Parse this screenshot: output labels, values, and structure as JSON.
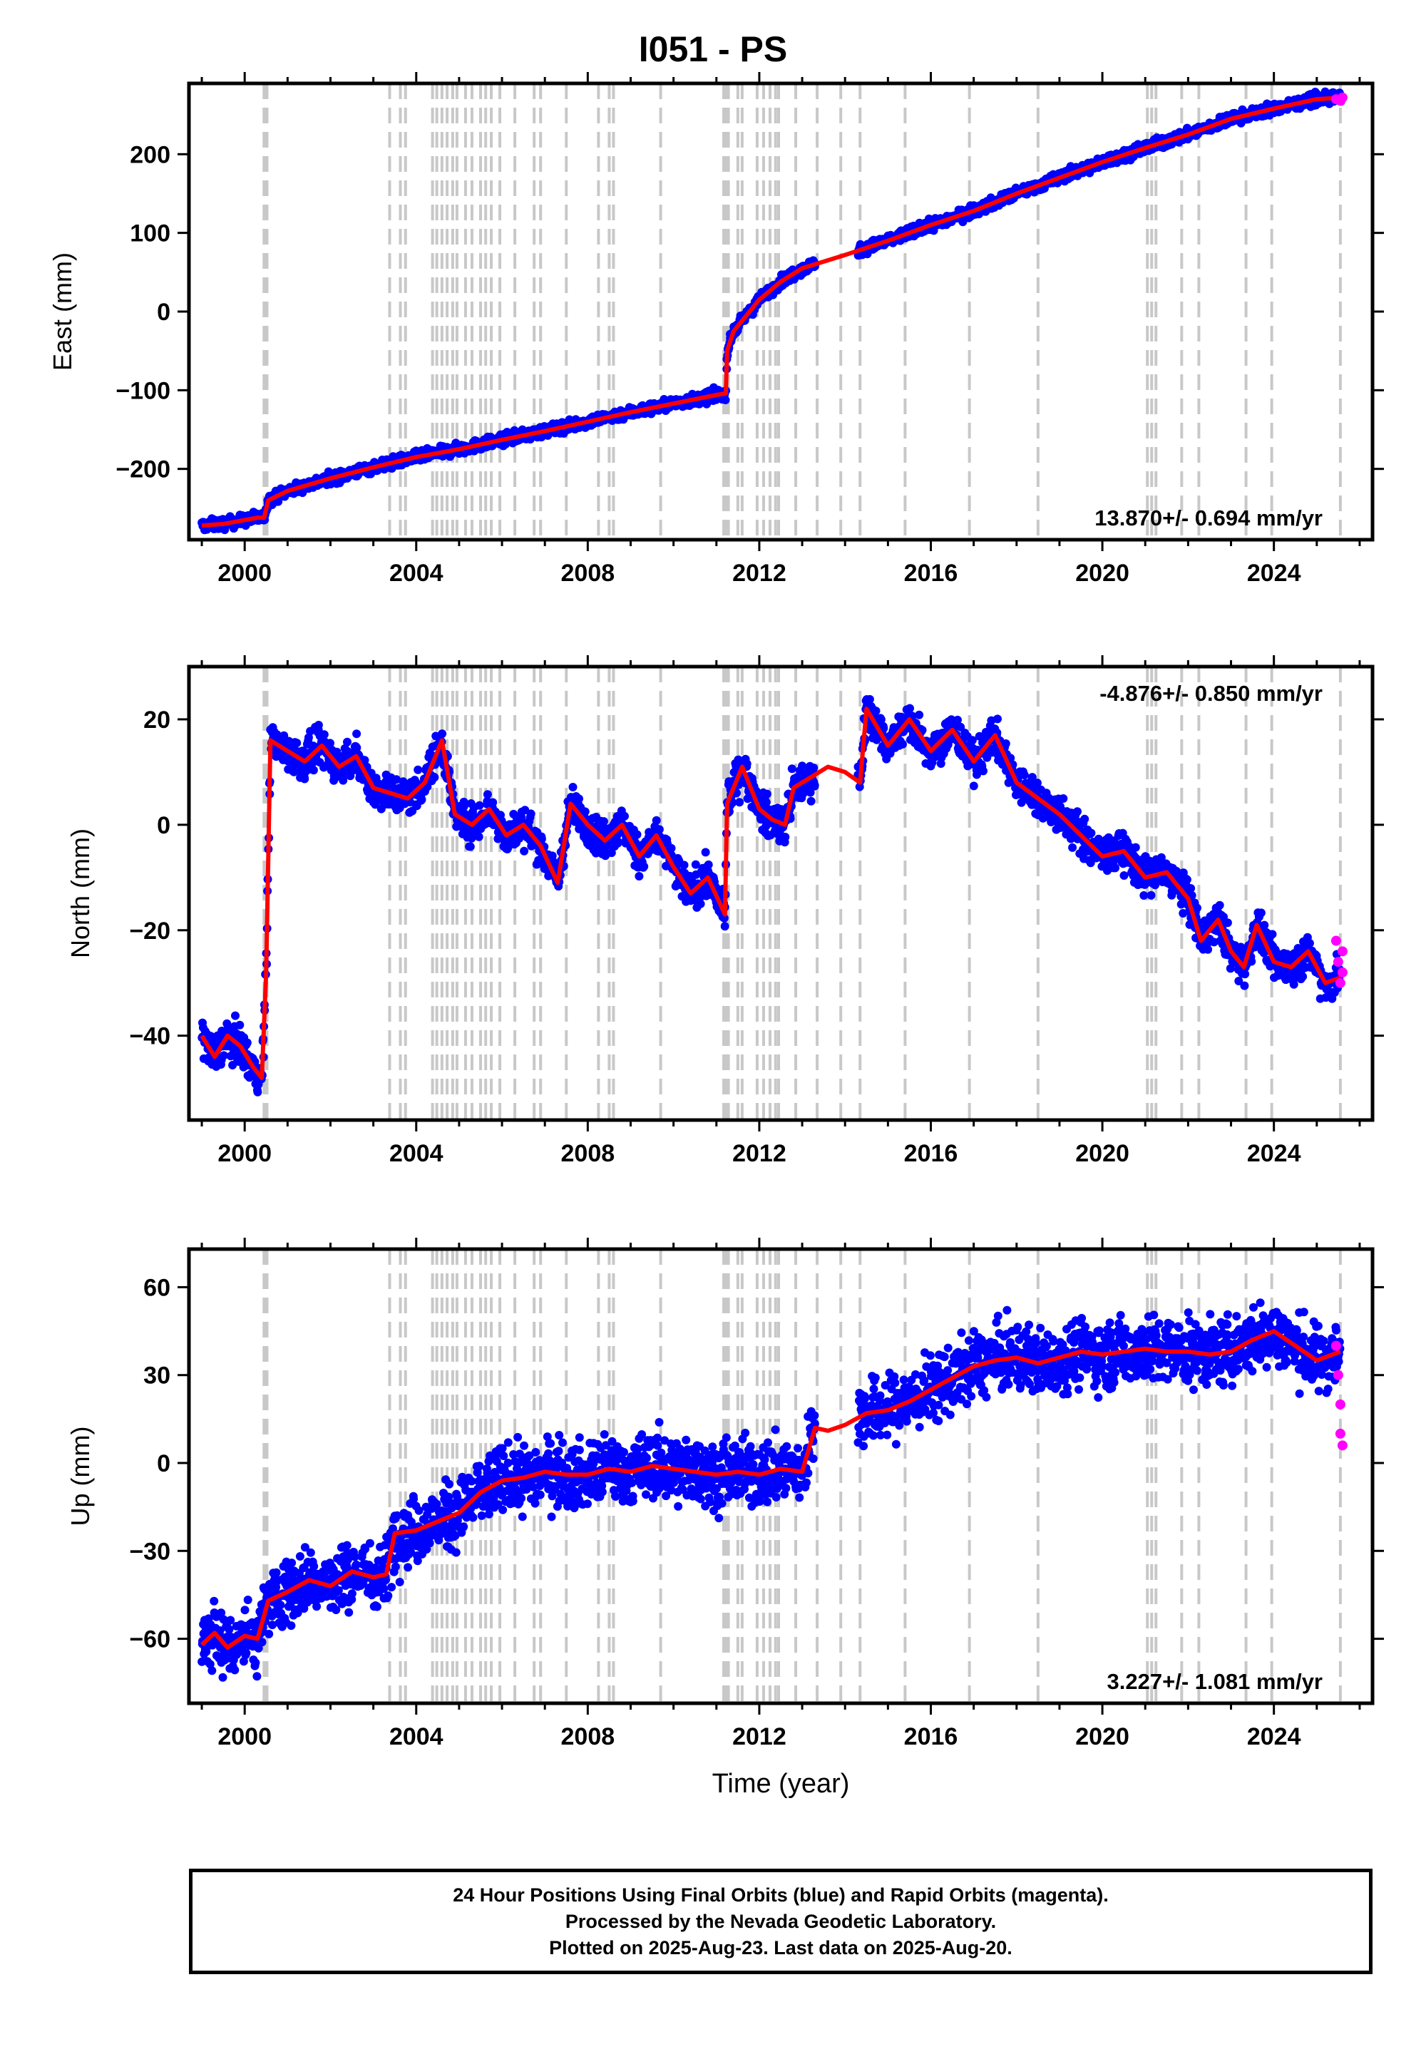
{
  "title": "I051 - PS",
  "footer": {
    "line1": "24 Hour Positions Using Final Orbits (blue) and Rapid Orbits (magenta).",
    "line2": "Processed by the Nevada Geodetic Laboratory.",
    "line3": "Plotted on 2025-Aug-23. Last data on 2025-Aug-20."
  },
  "colors": {
    "final_orbits": "#0000ff",
    "rapid_orbits": "#ff00ff",
    "model": "#ff0000",
    "steps": "#c8c8c8"
  },
  "steps_years": [
    2000.45,
    2000.47,
    2000.5,
    2000.52,
    2003.38,
    2003.63,
    2003.75,
    2004.38,
    2004.48,
    2004.6,
    2004.72,
    2004.85,
    2004.95,
    2005.15,
    2005.3,
    2005.5,
    2005.62,
    2005.75,
    2005.95,
    2006.3,
    2006.75,
    2006.9,
    2007.5,
    2008.25,
    2008.5,
    2008.6,
    2009.7,
    2011.17,
    2011.22,
    2011.28,
    2011.5,
    2011.6,
    2011.95,
    2012.1,
    2012.25,
    2012.38,
    2012.45,
    2012.85,
    2013.35,
    2013.9,
    2014.35,
    2015.4,
    2016.9,
    2018.5,
    2021.05,
    2021.15,
    2021.25,
    2021.85,
    2022.25,
    2023.35,
    2023.95,
    2025.55
  ],
  "chart_data": [
    {
      "type": "scatter",
      "component": "East",
      "ylabel": "East (mm)",
      "xlim": [
        1998.7,
        2026.3
      ],
      "ylim": [
        -290,
        290
      ],
      "xticks": [
        2000,
        2004,
        2008,
        2012,
        2016,
        2020,
        2024
      ],
      "yticks": [
        -200,
        -100,
        0,
        100,
        200
      ],
      "rate_label": "13.870+/- 0.694 mm/yr",
      "rate_position": "bottom-right",
      "model": {
        "x": [
          1999.0,
          1999.5,
          2000.0,
          2000.3,
          2000.45,
          2000.55,
          2001.0,
          2002.0,
          2003.0,
          2004.0,
          2005.0,
          2006.0,
          2007.0,
          2008.0,
          2009.0,
          2010.0,
          2011.0,
          2011.22,
          2011.25,
          2011.4,
          2011.7,
          2012.0,
          2012.5,
          2013.0,
          2014.0,
          2015.0,
          2016.0,
          2017.0,
          2018.0,
          2019.0,
          2020.0,
          2021.0,
          2022.0,
          2023.0,
          2024.0,
          2025.0,
          2025.6
        ],
        "y": [
          -272,
          -270,
          -265,
          -262,
          -262,
          -240,
          -228,
          -212,
          -198,
          -185,
          -175,
          -163,
          -152,
          -140,
          -128,
          -117,
          -106,
          -104,
          -50,
          -25,
          -5,
          15,
          38,
          55,
          72,
          90,
          110,
          128,
          150,
          170,
          190,
          208,
          225,
          245,
          258,
          270,
          272
        ]
      },
      "rapid_orbits": {
        "x": [
          2025.45,
          2025.55,
          2025.6
        ],
        "y": [
          270,
          268,
          272
        ]
      }
    },
    {
      "type": "scatter",
      "component": "North",
      "ylabel": "North (mm)",
      "xlim": [
        1998.7,
        2026.3
      ],
      "ylim": [
        -56,
        30
      ],
      "xticks": [
        2000,
        2004,
        2008,
        2012,
        2016,
        2020,
        2024
      ],
      "yticks": [
        -40,
        -20,
        0,
        20
      ],
      "rate_label": "-4.876+/- 0.850 mm/yr",
      "rate_position": "top-right",
      "model": {
        "x": [
          1999.0,
          1999.3,
          1999.6,
          1999.9,
          2000.2,
          2000.4,
          2000.5,
          2000.6,
          2001.0,
          2001.4,
          2001.8,
          2002.2,
          2002.6,
          2003.0,
          2003.4,
          2003.8,
          2004.2,
          2004.6,
          2004.9,
          2005.3,
          2005.7,
          2006.1,
          2006.5,
          2006.9,
          2007.3,
          2007.6,
          2008.0,
          2008.4,
          2008.8,
          2009.2,
          2009.6,
          2010.0,
          2010.4,
          2010.8,
          2011.2,
          2011.25,
          2011.6,
          2012.0,
          2012.3,
          2012.6,
          2012.8,
          2013.2,
          2013.6,
          2014.0,
          2014.35,
          2014.5,
          2015.0,
          2015.5,
          2016.0,
          2016.5,
          2017.0,
          2017.5,
          2018.0,
          2018.5,
          2019.0,
          2019.5,
          2020.0,
          2020.5,
          2021.0,
          2021.5,
          2022.0,
          2022.3,
          2022.7,
          2023.0,
          2023.3,
          2023.6,
          2024.0,
          2024.4,
          2024.8,
          2025.2,
          2025.55
        ],
        "y": [
          -40,
          -44,
          -40,
          -42,
          -46,
          -48,
          -28,
          16,
          14,
          12,
          15,
          11,
          13,
          7,
          6,
          5,
          8,
          16,
          2,
          0,
          3,
          -2,
          0,
          -4,
          -11,
          4,
          0,
          -3,
          0,
          -6,
          -2,
          -8,
          -13,
          -10,
          -17,
          4,
          11,
          3,
          1,
          0,
          7,
          9,
          11,
          10,
          8,
          22,
          15,
          20,
          14,
          18,
          12,
          17,
          8,
          5,
          2,
          -2,
          -6,
          -5,
          -10,
          -9,
          -14,
          -22,
          -18,
          -24,
          -27,
          -19,
          -26,
          -27,
          -24,
          -30,
          -29
        ]
      },
      "rapid_orbits": {
        "x": [
          2025.45,
          2025.5,
          2025.55,
          2025.6,
          2025.6
        ],
        "y": [
          -22,
          -26,
          -30,
          -24,
          -28
        ]
      }
    },
    {
      "type": "scatter",
      "component": "Up",
      "ylabel": "Up (mm)",
      "xlabel": "Time (year)",
      "xlim": [
        1998.7,
        2026.3
      ],
      "ylim": [
        -82,
        73
      ],
      "xticks": [
        2000,
        2004,
        2008,
        2012,
        2016,
        2020,
        2024
      ],
      "yticks": [
        -60,
        -30,
        0,
        30,
        60
      ],
      "rate_label": "3.227+/- 1.081 mm/yr",
      "rate_position": "bottom-right",
      "model": {
        "x": [
          1999.0,
          1999.3,
          1999.6,
          2000.0,
          2000.3,
          2000.55,
          2001.0,
          2001.5,
          2002.0,
          2002.5,
          2003.0,
          2003.3,
          2003.5,
          2004.0,
          2004.5,
          2005.0,
          2005.5,
          2006.0,
          2006.5,
          2007.0,
          2007.5,
          2008.0,
          2008.5,
          2009.0,
          2009.5,
          2010.0,
          2010.5,
          2011.0,
          2011.5,
          2012.0,
          2012.5,
          2013.0,
          2013.3,
          2013.6,
          2014.0,
          2014.5,
          2015.0,
          2015.5,
          2016.0,
          2016.5,
          2017.0,
          2017.5,
          2018.0,
          2018.5,
          2019.0,
          2019.5,
          2020.0,
          2020.5,
          2021.0,
          2021.5,
          2022.0,
          2022.5,
          2023.0,
          2023.5,
          2024.0,
          2024.5,
          2025.0,
          2025.55
        ],
        "y": [
          -62,
          -58,
          -63,
          -59,
          -60,
          -47,
          -44,
          -40,
          -42,
          -37,
          -39,
          -38,
          -24,
          -23,
          -20,
          -17,
          -10,
          -6,
          -5,
          -3,
          -4,
          -4,
          -2,
          -3,
          -1,
          -2,
          -3,
          -4,
          -3,
          -4,
          -2,
          -3,
          12,
          11,
          13,
          17,
          18,
          21,
          25,
          29,
          33,
          35,
          36,
          34,
          36,
          38,
          37,
          38,
          39,
          38,
          38,
          37,
          38,
          42,
          45,
          40,
          35,
          38
        ]
      },
      "rapid_orbits": {
        "x": [
          2025.45,
          2025.5,
          2025.55,
          2025.55,
          2025.6
        ],
        "y": [
          40,
          30,
          20,
          10,
          6
        ]
      }
    }
  ]
}
